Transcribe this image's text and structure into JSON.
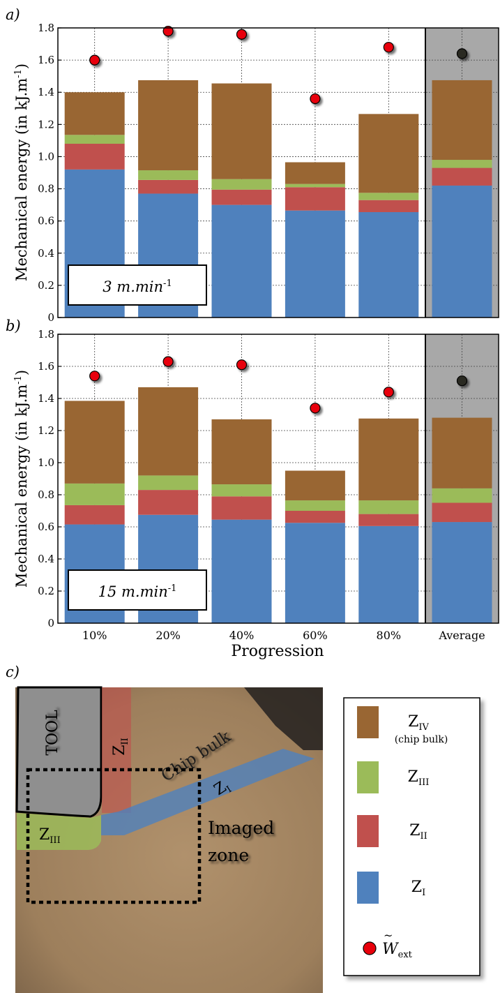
{
  "panel_labels": {
    "a": "a)",
    "b": "b)",
    "c": "c)"
  },
  "chart_data": [
    {
      "type": "bar",
      "panel": "a)",
      "stacked": true,
      "categories": [
        "10%",
        "20%",
        "40%",
        "60%",
        "80%",
        "Average"
      ],
      "ylabel": "Mechanical energy (in kJ.m",
      "ylabel_sup": "-1",
      "ylabel_close": ")",
      "ylim": [
        0,
        1.8
      ],
      "yticks": [
        "0",
        "0.2",
        "0.4",
        "0.6",
        "0.8",
        "1.0",
        "1.2",
        "1.4",
        "1.6",
        "1.8"
      ],
      "grid": true,
      "speed_label": "3 m.min",
      "speed_sup": "-1",
      "series": [
        {
          "name": "Z_I",
          "color": "#4f81bd",
          "values": [
            0.92,
            0.77,
            0.7,
            0.665,
            0.655,
            0.82
          ]
        },
        {
          "name": "Z_II",
          "color": "#c0504d",
          "values": [
            0.16,
            0.085,
            0.095,
            0.145,
            0.075,
            0.11
          ]
        },
        {
          "name": "Z_III",
          "color": "#9bbb59",
          "values": [
            0.055,
            0.06,
            0.065,
            0.02,
            0.045,
            0.05
          ]
        },
        {
          "name": "Z_IV (chip bulk)",
          "color": "#996633",
          "values": [
            0.265,
            0.56,
            0.595,
            0.135,
            0.49,
            0.495
          ]
        }
      ],
      "wext": [
        1.6,
        1.78,
        1.76,
        1.36,
        1.68,
        1.64
      ]
    },
    {
      "type": "bar",
      "panel": "b)",
      "stacked": true,
      "categories": [
        "10%",
        "20%",
        "40%",
        "60%",
        "80%",
        "Average"
      ],
      "xlabel": "Progression",
      "ylabel": "Mechanical energy (in kJ.m",
      "ylabel_sup": "-1",
      "ylabel_close": ")",
      "ylim": [
        0,
        1.8
      ],
      "yticks": [
        "0",
        "0.2",
        "0.4",
        "0.6",
        "0.8",
        "1.0",
        "1.2",
        "1.4",
        "1.6",
        "1.8"
      ],
      "grid": true,
      "speed_label": "15 m.min",
      "speed_sup": "-1",
      "series": [
        {
          "name": "Z_I",
          "color": "#4f81bd",
          "values": [
            0.615,
            0.675,
            0.645,
            0.625,
            0.605,
            0.63
          ]
        },
        {
          "name": "Z_II",
          "color": "#c0504d",
          "values": [
            0.12,
            0.155,
            0.145,
            0.075,
            0.075,
            0.12
          ]
        },
        {
          "name": "Z_III",
          "color": "#9bbb59",
          "values": [
            0.135,
            0.09,
            0.075,
            0.065,
            0.085,
            0.09
          ]
        },
        {
          "name": "Z_IV (chip bulk)",
          "color": "#996633",
          "values": [
            0.515,
            0.55,
            0.405,
            0.185,
            0.51,
            0.44
          ]
        }
      ],
      "wext": [
        1.54,
        1.63,
        1.61,
        1.34,
        1.44,
        1.51
      ]
    }
  ],
  "zones_image": {
    "tool_label": "TOOL",
    "chip_bulk_label": "Chip bulk",
    "imaged_zone_line1": "Imaged",
    "imaged_zone_line2": "zone",
    "z_label": "Z",
    "zI_sub": "I",
    "zII_sub": "II",
    "zIII_sub": "III"
  },
  "legend": {
    "entries": [
      {
        "base": "Z",
        "sub": "IV",
        "note": "(chip bulk)",
        "color": "#996633"
      },
      {
        "base": "Z",
        "sub": "III",
        "note": "",
        "color": "#9bbb59"
      },
      {
        "base": "Z",
        "sub": "II",
        "note": "",
        "color": "#c0504d"
      },
      {
        "base": "Z",
        "sub": "I",
        "note": "",
        "color": "#4f81bd"
      }
    ],
    "marker_base": "W",
    "marker_sub": "ext",
    "marker_color": "#e8000b"
  },
  "colors": {
    "average_bg": "#a8a8a8",
    "average_marker": "#2b2b22",
    "image_bg": "#a88a66"
  }
}
